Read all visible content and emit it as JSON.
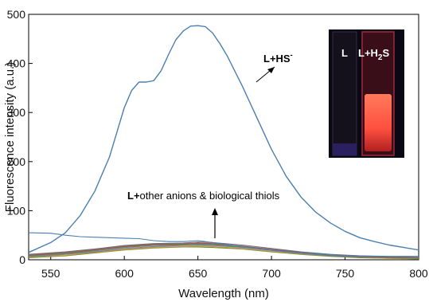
{
  "chart_data": {
    "type": "line",
    "xlabel": "Wavelength (nm)",
    "ylabel": "Fluorescence intensity (a.u.)",
    "xlim": [
      535,
      800
    ],
    "ylim": [
      0,
      500
    ],
    "xticks": [
      550,
      600,
      650,
      700,
      750,
      800
    ],
    "yticks": [
      0,
      100,
      200,
      300,
      400,
      500
    ],
    "grid": false,
    "series": [
      {
        "label_ref": "hs",
        "color": "#4a7fb0",
        "x": [
          535,
          550,
          560,
          570,
          580,
          590,
          595,
          600,
          605,
          610,
          615,
          620,
          625,
          630,
          635,
          640,
          645,
          650,
          655,
          660,
          665,
          670,
          680,
          690,
          700,
          710,
          720,
          730,
          740,
          750,
          760,
          770,
          780,
          790,
          800
        ],
        "y": [
          15,
          35,
          55,
          90,
          140,
          210,
          260,
          310,
          345,
          362,
          362,
          365,
          385,
          418,
          448,
          466,
          476,
          477,
          475,
          462,
          440,
          415,
          355,
          290,
          225,
          170,
          128,
          97,
          75,
          58,
          45,
          37,
          30,
          25,
          20
        ]
      },
      {
        "color": "#4a7fb0",
        "x": [
          535,
          550,
          560,
          570,
          580,
          590,
          600,
          610,
          620,
          630,
          640,
          650,
          660,
          670,
          680,
          700,
          720,
          740,
          760,
          780,
          800
        ],
        "y": [
          55,
          54,
          50,
          47,
          46,
          45,
          44,
          43,
          39,
          37,
          37,
          39,
          35,
          31,
          27,
          20,
          14,
          10,
          8,
          7,
          7
        ]
      },
      {
        "color": "#6f6f6f",
        "x": [
          535,
          560,
          580,
          600,
          620,
          640,
          650,
          660,
          680,
          700,
          720,
          740,
          760,
          780,
          800
        ],
        "y": [
          11,
          16,
          22,
          29,
          33,
          34,
          36,
          35,
          30,
          23,
          16,
          11,
          8,
          6,
          5
        ]
      },
      {
        "color": "#b04a4a",
        "x": [
          535,
          560,
          580,
          600,
          620,
          640,
          650,
          660,
          680,
          700,
          720,
          740,
          760,
          780,
          800
        ],
        "y": [
          9,
          14,
          20,
          27,
          31,
          32,
          34,
          33,
          28,
          21,
          15,
          10,
          7,
          5,
          4
        ]
      },
      {
        "color": "#5a9a5a",
        "x": [
          535,
          560,
          580,
          600,
          620,
          640,
          650,
          660,
          680,
          700,
          720,
          740,
          760,
          780,
          800
        ],
        "y": [
          7,
          12,
          18,
          25,
          29,
          30,
          32,
          31,
          26,
          20,
          14,
          9,
          6,
          4,
          3
        ]
      },
      {
        "color": "#8a6aa8",
        "x": [
          535,
          560,
          580,
          600,
          620,
          640,
          650,
          660,
          680,
          700,
          720,
          740,
          760,
          780,
          800
        ],
        "y": [
          6,
          11,
          16,
          23,
          27,
          29,
          30,
          29,
          25,
          19,
          13,
          8,
          5,
          4,
          3
        ]
      },
      {
        "color": "#c29a3a",
        "x": [
          535,
          560,
          580,
          600,
          620,
          640,
          650,
          660,
          680,
          700,
          720,
          740,
          760,
          780,
          800
        ],
        "y": [
          5,
          9,
          15,
          21,
          25,
          27,
          28,
          27,
          23,
          17,
          12,
          8,
          5,
          3,
          2
        ]
      },
      {
        "color": "#3aa0a0",
        "x": [
          535,
          560,
          580,
          600,
          620,
          640,
          650,
          660,
          680,
          700,
          720,
          740,
          760,
          780,
          800
        ],
        "y": [
          8,
          13,
          19,
          26,
          30,
          31,
          31,
          30,
          26,
          20,
          14,
          9,
          6,
          4,
          3
        ]
      },
      {
        "color": "#888888",
        "x": [
          535,
          560,
          580,
          600,
          620,
          640,
          650,
          660,
          680,
          700,
          720,
          740,
          760,
          780,
          800
        ],
        "y": [
          10,
          15,
          21,
          28,
          32,
          33,
          33,
          32,
          27,
          21,
          15,
          10,
          7,
          5,
          4
        ]
      },
      {
        "color": "#6b8e23",
        "x": [
          535,
          560,
          580,
          600,
          620,
          640,
          650,
          660,
          680,
          700,
          720,
          740,
          760,
          780,
          800
        ],
        "y": [
          4,
          8,
          14,
          20,
          24,
          26,
          26,
          25,
          22,
          16,
          11,
          7,
          4,
          3,
          2
        ]
      }
    ],
    "annotations": {
      "hs": {
        "prefix": "L+HS",
        "sup": "-"
      },
      "others": {
        "bold": "L+",
        "rest": "other anions & biological thiols"
      }
    },
    "inset": {
      "left_label": "L",
      "right_prefix": "L+H",
      "right_sub": "2",
      "right_suffix": "S"
    }
  }
}
